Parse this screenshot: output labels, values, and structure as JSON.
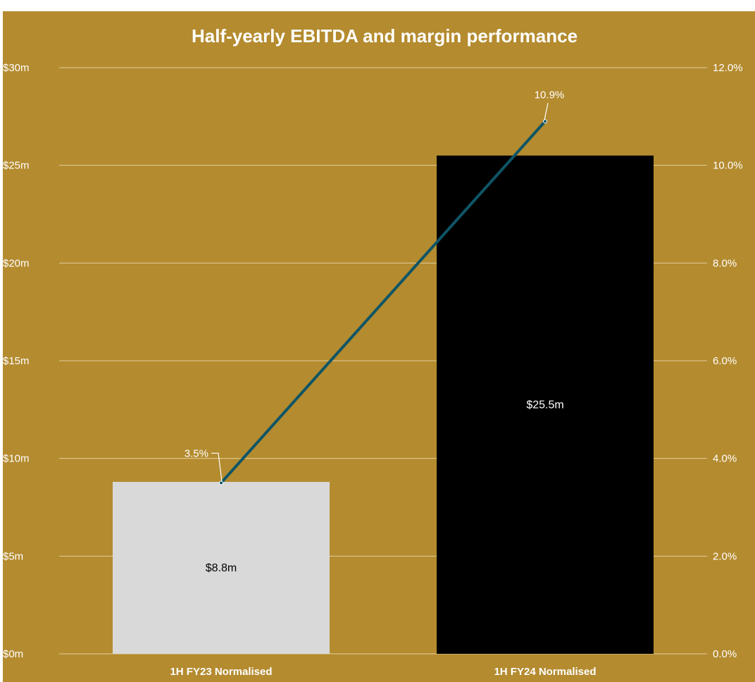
{
  "chart_data": {
    "type": "bar",
    "title": "Half-yearly EBITDA and margin performance",
    "categories": [
      "1H FY23 Normalised",
      "1H FY24 Normalised"
    ],
    "series": [
      {
        "type": "bar",
        "axis": "left",
        "values": [
          8.8,
          25.5
        ],
        "labels": [
          "$8.8m",
          "$25.5m"
        ],
        "colors": [
          "#d9d9d9",
          "#000000"
        ],
        "label_colors": [
          "#000000",
          "#ffffff"
        ]
      },
      {
        "type": "line",
        "axis": "right",
        "values": [
          3.5,
          10.9
        ],
        "labels": [
          "3.5%",
          "10.9%"
        ],
        "color": "#0e5566"
      }
    ],
    "y_left": {
      "ylim": [
        0,
        30
      ],
      "ticks": [
        0,
        5,
        10,
        15,
        20,
        25,
        30
      ],
      "tick_labels": [
        "$0m",
        "$5m",
        "$10m",
        "$15m",
        "$20m",
        "$25m",
        "$30m"
      ]
    },
    "y_right": {
      "ylim": [
        0,
        12
      ],
      "ticks": [
        0,
        2,
        4,
        6,
        8,
        10,
        12
      ],
      "tick_labels": [
        "0.0%",
        "2.0%",
        "4.0%",
        "6.0%",
        "8.0%",
        "10.0%",
        "12.0%"
      ]
    },
    "grid": true,
    "legend": "none",
    "background": "#b48b2f",
    "grid_color": "#e3cf9c"
  }
}
